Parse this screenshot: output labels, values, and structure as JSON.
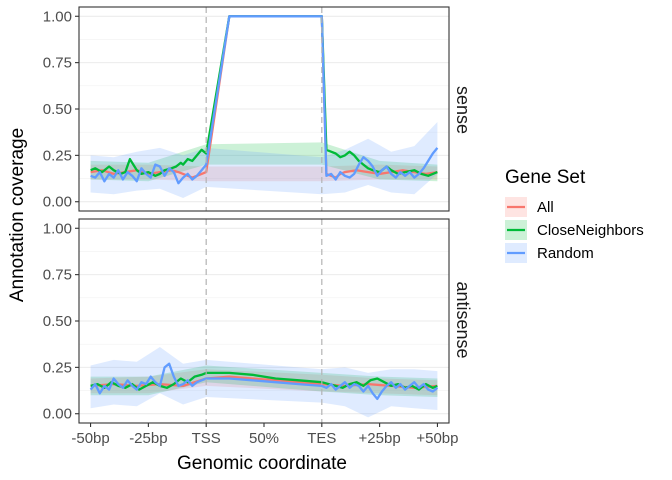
{
  "chart_data": {
    "type": "line",
    "xlabel": "Genomic coordinate",
    "ylabel": "Annotation coverage",
    "ylim": [
      0,
      1
    ],
    "y_ticks": [
      "0.00",
      "0.25",
      "0.50",
      "0.75",
      "1.00"
    ],
    "x_ticks": [
      "-50bp",
      "-25bp",
      "TSS",
      "50%",
      "TES",
      "+25bp",
      "+50bp"
    ],
    "grid": true,
    "panels": [
      "sense",
      "antisense"
    ],
    "legend": {
      "title": "Gene Set",
      "position": "right"
    },
    "colors": {
      "All": "#F8766D",
      "CloseNeighbors": "#00BA38",
      "Random": "#619CFF"
    },
    "vlines": [
      "TSS",
      "TES"
    ],
    "series": [
      {
        "name": "All",
        "panel": "sense",
        "x": [
          -50,
          -45,
          -40,
          -35,
          -30,
          -25,
          -20,
          -15,
          -12,
          -10,
          -8,
          -6,
          -4,
          -2,
          0,
          10,
          20,
          30,
          40,
          50,
          52,
          54,
          56,
          58,
          60,
          65,
          70,
          75,
          80,
          85,
          90,
          95,
          100
        ],
        "y": [
          0.16,
          0.17,
          0.15,
          0.16,
          0.17,
          0.15,
          0.16,
          0.17,
          0.16,
          0.15,
          0.14,
          0.13,
          0.14,
          0.15,
          0.16,
          1.0,
          1.0,
          1.0,
          1.0,
          1.0,
          0.15,
          0.14,
          0.13,
          0.15,
          0.16,
          0.17,
          0.16,
          0.15,
          0.16,
          0.17,
          0.16,
          0.15,
          0.16
        ]
      },
      {
        "name": "CloseNeighbors",
        "panel": "sense",
        "x": [
          -50,
          -48,
          -45,
          -42,
          -40,
          -37,
          -35,
          -33,
          -30,
          -28,
          -25,
          -22,
          -20,
          -18,
          -15,
          -13,
          -11,
          -10,
          -8,
          -6,
          -4,
          -2,
          0,
          10,
          20,
          30,
          40,
          50,
          52,
          54,
          56,
          58,
          60,
          62,
          64,
          66,
          68,
          70,
          72,
          75,
          78,
          80,
          83,
          86,
          90,
          93,
          96,
          100
        ],
        "y": [
          0.17,
          0.18,
          0.16,
          0.19,
          0.17,
          0.15,
          0.16,
          0.23,
          0.17,
          0.15,
          0.16,
          0.14,
          0.15,
          0.17,
          0.18,
          0.19,
          0.21,
          0.2,
          0.23,
          0.22,
          0.25,
          0.28,
          0.26,
          1.0,
          1.0,
          1.0,
          1.0,
          1.0,
          0.28,
          0.27,
          0.26,
          0.24,
          0.25,
          0.27,
          0.25,
          0.22,
          0.2,
          0.18,
          0.17,
          0.16,
          0.19,
          0.17,
          0.15,
          0.16,
          0.17,
          0.15,
          0.14,
          0.16
        ]
      },
      {
        "name": "Random",
        "panel": "sense",
        "x": [
          -50,
          -48,
          -46,
          -44,
          -42,
          -40,
          -38,
          -36,
          -34,
          -32,
          -30,
          -28,
          -26,
          -24,
          -22,
          -20,
          -18,
          -16,
          -14,
          -12,
          -10,
          -8,
          -6,
          -4,
          -2,
          0,
          10,
          20,
          30,
          40,
          50,
          52,
          54,
          56,
          58,
          60,
          62,
          64,
          66,
          68,
          70,
          72,
          74,
          76,
          78,
          80,
          82,
          84,
          86,
          88,
          90,
          92,
          94,
          96,
          98,
          100
        ],
        "y": [
          0.14,
          0.13,
          0.16,
          0.11,
          0.15,
          0.13,
          0.17,
          0.12,
          0.16,
          0.14,
          0.11,
          0.18,
          0.15,
          0.13,
          0.2,
          0.19,
          0.14,
          0.18,
          0.16,
          0.1,
          0.13,
          0.15,
          0.12,
          0.14,
          0.17,
          0.2,
          1.0,
          1.0,
          1.0,
          1.0,
          1.0,
          0.14,
          0.15,
          0.12,
          0.16,
          0.14,
          0.13,
          0.15,
          0.2,
          0.24,
          0.22,
          0.19,
          0.14,
          0.17,
          0.19,
          0.15,
          0.13,
          0.16,
          0.14,
          0.16,
          0.13,
          0.15,
          0.18,
          0.22,
          0.26,
          0.29
        ]
      },
      {
        "name": "All",
        "panel": "antisense",
        "x": [
          -50,
          -40,
          -30,
          -20,
          -10,
          0,
          10,
          20,
          30,
          40,
          50,
          60,
          70,
          80,
          90,
          100
        ],
        "y": [
          0.15,
          0.16,
          0.15,
          0.16,
          0.15,
          0.19,
          0.2,
          0.19,
          0.18,
          0.17,
          0.16,
          0.15,
          0.16,
          0.15,
          0.14,
          0.15
        ]
      },
      {
        "name": "CloseNeighbors",
        "panel": "antisense",
        "x": [
          -50,
          -47,
          -44,
          -41,
          -38,
          -35,
          -32,
          -29,
          -26,
          -23,
          -20,
          -17,
          -14,
          -11,
          -8,
          -5,
          -2,
          0,
          10,
          20,
          30,
          40,
          50,
          53,
          56,
          59,
          62,
          65,
          68,
          71,
          74,
          77,
          80,
          83,
          86,
          89,
          92,
          95,
          98,
          100
        ],
        "y": [
          0.15,
          0.16,
          0.14,
          0.17,
          0.15,
          0.14,
          0.16,
          0.13,
          0.15,
          0.17,
          0.15,
          0.14,
          0.16,
          0.19,
          0.17,
          0.2,
          0.21,
          0.22,
          0.22,
          0.21,
          0.19,
          0.18,
          0.17,
          0.16,
          0.15,
          0.14,
          0.16,
          0.17,
          0.15,
          0.18,
          0.19,
          0.17,
          0.15,
          0.16,
          0.14,
          0.15,
          0.13,
          0.16,
          0.14,
          0.15
        ]
      },
      {
        "name": "Random",
        "panel": "antisense",
        "x": [
          -50,
          -48,
          -46,
          -44,
          -42,
          -40,
          -38,
          -36,
          -34,
          -32,
          -30,
          -28,
          -26,
          -24,
          -22,
          -20,
          -18,
          -16,
          -14,
          -12,
          -10,
          -8,
          -6,
          -4,
          -2,
          0,
          10,
          20,
          30,
          40,
          50,
          52,
          54,
          56,
          58,
          60,
          62,
          64,
          66,
          68,
          70,
          72,
          74,
          76,
          78,
          80,
          82,
          84,
          86,
          88,
          90,
          92,
          94,
          96,
          98,
          100
        ],
        "y": [
          0.13,
          0.16,
          0.11,
          0.15,
          0.13,
          0.19,
          0.16,
          0.14,
          0.18,
          0.15,
          0.13,
          0.17,
          0.16,
          0.2,
          0.17,
          0.15,
          0.25,
          0.27,
          0.2,
          0.15,
          0.16,
          0.18,
          0.15,
          0.17,
          0.18,
          0.19,
          0.19,
          0.18,
          0.17,
          0.16,
          0.15,
          0.14,
          0.16,
          0.13,
          0.15,
          0.17,
          0.14,
          0.16,
          0.15,
          0.12,
          0.15,
          0.11,
          0.08,
          0.12,
          0.15,
          0.17,
          0.14,
          0.16,
          0.13,
          0.15,
          0.17,
          0.14,
          0.16,
          0.13,
          0.12,
          0.14
        ]
      }
    ],
    "bands": [
      {
        "name": "All",
        "panel": "sense",
        "x": [
          -50,
          -25,
          0,
          50,
          75,
          100
        ],
        "upper": [
          0.2,
          0.2,
          0.19,
          0.19,
          0.2,
          0.19
        ],
        "lower": [
          0.12,
          0.12,
          0.11,
          0.11,
          0.12,
          0.12
        ]
      },
      {
        "name": "CloseNeighbors",
        "panel": "sense",
        "x": [
          -50,
          -25,
          0,
          50,
          75,
          100
        ],
        "upper": [
          0.22,
          0.21,
          0.31,
          0.32,
          0.22,
          0.2
        ],
        "lower": [
          0.12,
          0.11,
          0.2,
          0.2,
          0.12,
          0.11
        ]
      },
      {
        "name": "Random",
        "panel": "sense",
        "x": [
          -50,
          -40,
          -30,
          -20,
          -10,
          0,
          50,
          60,
          70,
          80,
          90,
          100
        ],
        "upper": [
          0.25,
          0.24,
          0.27,
          0.29,
          0.25,
          0.29,
          0.24,
          0.28,
          0.34,
          0.27,
          0.3,
          0.43
        ],
        "lower": [
          0.05,
          0.04,
          0.06,
          0.07,
          0.02,
          0.08,
          0.04,
          0.05,
          0.09,
          0.05,
          0.04,
          0.15
        ]
      },
      {
        "name": "All",
        "panel": "antisense",
        "x": [
          -50,
          -25,
          0,
          50,
          75,
          100
        ],
        "upper": [
          0.19,
          0.2,
          0.24,
          0.21,
          0.19,
          0.18
        ],
        "lower": [
          0.11,
          0.11,
          0.15,
          0.12,
          0.11,
          0.1
        ]
      },
      {
        "name": "CloseNeighbors",
        "panel": "antisense",
        "x": [
          -50,
          -25,
          0,
          50,
          75,
          100
        ],
        "upper": [
          0.2,
          0.2,
          0.26,
          0.22,
          0.2,
          0.19
        ],
        "lower": [
          0.1,
          0.1,
          0.17,
          0.12,
          0.1,
          0.09
        ]
      },
      {
        "name": "Random",
        "panel": "antisense",
        "x": [
          -50,
          -40,
          -30,
          -20,
          -10,
          0,
          50,
          60,
          70,
          80,
          90,
          100
        ],
        "upper": [
          0.26,
          0.29,
          0.28,
          0.36,
          0.27,
          0.29,
          0.24,
          0.25,
          0.22,
          0.24,
          0.24,
          0.23
        ],
        "lower": [
          0.03,
          0.05,
          0.04,
          0.11,
          0.05,
          0.09,
          0.06,
          0.04,
          -0.02,
          0.04,
          0.03,
          0.02
        ]
      }
    ]
  }
}
